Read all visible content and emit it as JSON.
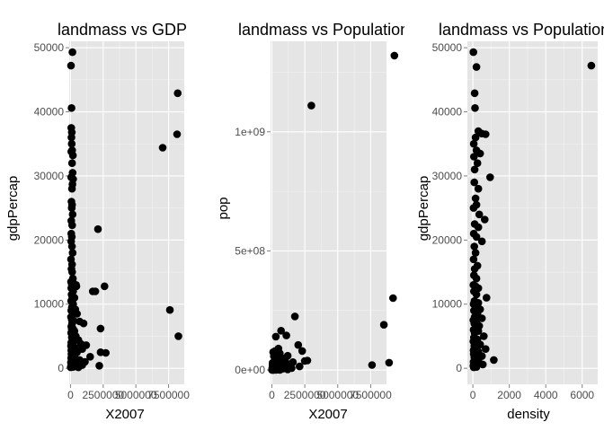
{
  "chart_data": [
    {
      "type": "scatter",
      "title": "landmass vs GDP",
      "xlabel": "X2007",
      "ylabel": "gdpPercap",
      "xlim": [
        -100000,
        8700000
      ],
      "ylim": [
        -2500,
        51000
      ],
      "x_ticks": [
        0,
        2500000,
        5000000,
        7500000
      ],
      "x_tick_labels": [
        "0",
        "2500000",
        "5000000",
        "7500000"
      ],
      "y_ticks": [
        0,
        10000,
        20000,
        30000,
        40000,
        50000
      ],
      "y_tick_labels": [
        "0",
        "10000",
        "20000",
        "30000",
        "40000",
        "50000"
      ],
      "grid": true,
      "points": [
        [
          150000,
          49300
        ],
        [
          40000,
          47200
        ],
        [
          80000,
          40600
        ],
        [
          60000,
          37500
        ],
        [
          100000,
          36800
        ],
        [
          70000,
          36000
        ],
        [
          90000,
          35000
        ],
        [
          130000,
          34000
        ],
        [
          60000,
          33800
        ],
        [
          180000,
          33200
        ],
        [
          120000,
          32000
        ],
        [
          160000,
          30500
        ],
        [
          50000,
          29800
        ],
        [
          200000,
          29500
        ],
        [
          150000,
          28700
        ],
        [
          110000,
          28000
        ],
        [
          70000,
          26000
        ],
        [
          120000,
          25500
        ],
        [
          90000,
          25000
        ],
        [
          160000,
          24000
        ],
        [
          60000,
          23000
        ],
        [
          130000,
          22300
        ],
        [
          2100000,
          21700
        ],
        [
          60000,
          21000
        ],
        [
          100000,
          20500
        ],
        [
          50000,
          19800
        ],
        [
          110000,
          19000
        ],
        [
          160000,
          18000
        ],
        [
          40000,
          17000
        ],
        [
          120000,
          16200
        ],
        [
          70000,
          15500
        ],
        [
          130000,
          15000
        ],
        [
          180000,
          14000
        ],
        [
          40000,
          13500
        ],
        [
          100000,
          13000
        ],
        [
          250000,
          13200
        ],
        [
          420000,
          13000
        ],
        [
          450000,
          12800
        ],
        [
          60000,
          12500
        ],
        [
          200000,
          12000
        ],
        [
          1700000,
          12000
        ],
        [
          1900000,
          12000
        ],
        [
          2600000,
          12800
        ],
        [
          80000,
          11500
        ],
        [
          130000,
          11200
        ],
        [
          300000,
          11000
        ],
        [
          50000,
          10500
        ],
        [
          200000,
          10000
        ],
        [
          100000,
          9500
        ],
        [
          370000,
          9200
        ],
        [
          60000,
          9000
        ],
        [
          150000,
          8700
        ],
        [
          500000,
          8500
        ],
        [
          40000,
          8000
        ],
        [
          90000,
          7600
        ],
        [
          250000,
          7400
        ],
        [
          700000,
          7300
        ],
        [
          120000,
          7000
        ],
        [
          1000000,
          7000
        ],
        [
          60000,
          6500
        ],
        [
          180000,
          6200
        ],
        [
          2300000,
          6200
        ],
        [
          90000,
          6000
        ],
        [
          300000,
          5800
        ],
        [
          50000,
          5500
        ],
        [
          150000,
          5200
        ],
        [
          400000,
          5000
        ],
        [
          100000,
          4800
        ],
        [
          250000,
          4500
        ],
        [
          600000,
          4400
        ],
        [
          60000,
          4000
        ],
        [
          200000,
          3900
        ],
        [
          800000,
          3800
        ],
        [
          1200000,
          3600
        ],
        [
          40000,
          3500
        ],
        [
          120000,
          3300
        ],
        [
          350000,
          3200
        ],
        [
          900000,
          3000
        ],
        [
          60000,
          2800
        ],
        [
          220000,
          2600
        ],
        [
          500000,
          2500
        ],
        [
          2300000,
          2500
        ],
        [
          2700000,
          2400
        ],
        [
          70000,
          2200
        ],
        [
          160000,
          2000
        ],
        [
          300000,
          1900
        ],
        [
          1500000,
          1800
        ],
        [
          50000,
          1600
        ],
        [
          130000,
          1500
        ],
        [
          400000,
          1400
        ],
        [
          700000,
          1300
        ],
        [
          80000,
          1100
        ],
        [
          200000,
          1000
        ],
        [
          1100000,
          1000
        ],
        [
          30000,
          900
        ],
        [
          150000,
          800
        ],
        [
          450000,
          700
        ],
        [
          60000,
          600
        ],
        [
          250000,
          500
        ],
        [
          900000,
          500
        ],
        [
          2200000,
          400
        ],
        [
          100000,
          300
        ],
        [
          350000,
          300
        ],
        [
          40000,
          250
        ],
        [
          180000,
          200
        ],
        [
          20000,
          150
        ],
        [
          600000,
          150
        ],
        [
          7050000,
          34400
        ],
        [
          8200000,
          42900
        ],
        [
          8150000,
          36500
        ],
        [
          7600000,
          9100
        ],
        [
          8250000,
          5000
        ]
      ]
    },
    {
      "type": "scatter",
      "title": "landmass vs Population",
      "xlabel": "X2007",
      "ylabel": "pop",
      "xlim": [
        -100000,
        8700000
      ],
      "ylim": [
        -60000000,
        1380000000
      ],
      "x_ticks": [
        0,
        2500000,
        5000000,
        7500000
      ],
      "x_tick_labels": [
        "0",
        "2500000",
        "5000000",
        "7500000"
      ],
      "y_ticks": [
        0,
        500000000,
        1000000000
      ],
      "y_tick_labels": [
        "0e+00",
        "5e+08",
        "1e+09"
      ],
      "grid": true,
      "points": [
        [
          9300000,
          1320000000
        ],
        [
          3000000,
          1110000000
        ],
        [
          9200000,
          302000000
        ],
        [
          8500000,
          190000000
        ],
        [
          1750000,
          225000000
        ],
        [
          8900000,
          31000000
        ],
        [
          7600000,
          21000000
        ],
        [
          700000,
          165000000
        ],
        [
          1100000,
          145000000
        ],
        [
          300000,
          140000000
        ],
        [
          2000000,
          105000000
        ],
        [
          500000,
          90000000
        ],
        [
          2300000,
          80000000
        ],
        [
          250000,
          80000000
        ],
        [
          100000,
          75000000
        ],
        [
          600000,
          70000000
        ],
        [
          400000,
          65000000
        ],
        [
          1200000,
          60000000
        ],
        [
          150000,
          58000000
        ],
        [
          800000,
          50000000
        ],
        [
          300000,
          48000000
        ],
        [
          1000000,
          45000000
        ],
        [
          2700000,
          40000000
        ],
        [
          2500000,
          38000000
        ],
        [
          500000,
          38000000
        ],
        [
          200000,
          35000000
        ],
        [
          1600000,
          33000000
        ],
        [
          60000,
          30000000
        ],
        [
          400000,
          28000000
        ],
        [
          700000,
          26000000
        ],
        [
          100000,
          25000000
        ],
        [
          1300000,
          24000000
        ],
        [
          300000,
          22000000
        ],
        [
          900000,
          20000000
        ],
        [
          50000,
          20000000
        ],
        [
          150000,
          18000000
        ],
        [
          500000,
          17000000
        ],
        [
          2100000,
          15000000
        ],
        [
          250000,
          15000000
        ],
        [
          800000,
          14000000
        ],
        [
          80000,
          12000000
        ],
        [
          400000,
          11000000
        ],
        [
          1100000,
          10000000
        ],
        [
          40000,
          10000000
        ],
        [
          200000,
          9000000
        ],
        [
          600000,
          8500000
        ],
        [
          1500000,
          8000000
        ],
        [
          100000,
          7500000
        ],
        [
          300000,
          7000000
        ],
        [
          60000,
          6500000
        ],
        [
          900000,
          6000000
        ],
        [
          150000,
          5500000
        ],
        [
          450000,
          5000000
        ],
        [
          30000,
          4500000
        ],
        [
          250000,
          4000000
        ],
        [
          700000,
          3500000
        ],
        [
          80000,
          3000000
        ],
        [
          350000,
          2500000
        ],
        [
          1200000,
          2200000
        ],
        [
          50000,
          2000000
        ],
        [
          200000,
          1800000
        ],
        [
          500000,
          1500000
        ],
        [
          20000,
          1200000
        ],
        [
          120000,
          1000000
        ],
        [
          300000,
          800000
        ],
        [
          40000,
          600000
        ],
        [
          150000,
          500000
        ],
        [
          600000,
          400000
        ],
        [
          10000,
          300000
        ],
        [
          100000,
          200000
        ]
      ]
    },
    {
      "type": "scatter",
      "title": "landmass vs Population",
      "xlabel": "density",
      "ylabel": "gdpPercap",
      "xlim": [
        -300,
        6850
      ],
      "ylim": [
        -2500,
        51000
      ],
      "x_ticks": [
        0,
        2000,
        4000,
        6000
      ],
      "x_tick_labels": [
        "0",
        "2000",
        "4000",
        "6000"
      ],
      "y_ticks": [
        0,
        10000,
        20000,
        30000,
        40000,
        50000
      ],
      "y_tick_labels": [
        "0",
        "10000",
        "20000",
        "30000",
        "40000",
        "50000"
      ],
      "grid": true,
      "points": [
        [
          30,
          49300
        ],
        [
          6500,
          47200
        ],
        [
          200,
          47000
        ],
        [
          100,
          42900
        ],
        [
          120,
          40600
        ],
        [
          300,
          37000
        ],
        [
          500,
          36600
        ],
        [
          700,
          36500
        ],
        [
          150,
          36000
        ],
        [
          50,
          35000
        ],
        [
          200,
          34000
        ],
        [
          400,
          33500
        ],
        [
          60,
          33000
        ],
        [
          250,
          32000
        ],
        [
          100,
          31000
        ],
        [
          950,
          29800
        ],
        [
          80,
          29000
        ],
        [
          300,
          28000
        ],
        [
          150,
          26500
        ],
        [
          200,
          25500
        ],
        [
          40,
          25000
        ],
        [
          350,
          24000
        ],
        [
          650,
          23200
        ],
        [
          100,
          22500
        ],
        [
          300,
          22000
        ],
        [
          50,
          21000
        ],
        [
          200,
          20500
        ],
        [
          500,
          19800
        ],
        [
          80,
          19000
        ],
        [
          150,
          18000
        ],
        [
          40,
          17000
        ],
        [
          250,
          16000
        ],
        [
          100,
          15500
        ],
        [
          60,
          14500
        ],
        [
          200,
          14000
        ],
        [
          30,
          13000
        ],
        [
          150,
          12800
        ],
        [
          300,
          12500
        ],
        [
          60,
          12000
        ],
        [
          200,
          11500
        ],
        [
          750,
          11000
        ],
        [
          90,
          10500
        ],
        [
          300,
          10200
        ],
        [
          40,
          10000
        ],
        [
          150,
          9500
        ],
        [
          400,
          9200
        ],
        [
          60,
          9000
        ],
        [
          250,
          8500
        ],
        [
          100,
          8000
        ],
        [
          500,
          7800
        ],
        [
          30,
          7500
        ],
        [
          200,
          7200
        ],
        [
          80,
          7000
        ],
        [
          350,
          6600
        ],
        [
          150,
          6200
        ],
        [
          40,
          6000
        ],
        [
          300,
          5800
        ],
        [
          100,
          5500
        ],
        [
          600,
          5000
        ],
        [
          60,
          4800
        ],
        [
          250,
          4500
        ],
        [
          30,
          4200
        ],
        [
          150,
          4000
        ],
        [
          400,
          3700
        ],
        [
          80,
          3500
        ],
        [
          200,
          3200
        ],
        [
          700,
          3000
        ],
        [
          40,
          2800
        ],
        [
          300,
          2600
        ],
        [
          100,
          2400
        ],
        [
          50,
          2200
        ],
        [
          200,
          2000
        ],
        [
          500,
          1900
        ],
        [
          80,
          1700
        ],
        [
          150,
          1500
        ],
        [
          1150,
          1300
        ],
        [
          300,
          1200
        ],
        [
          40,
          1000
        ],
        [
          100,
          900
        ],
        [
          250,
          800
        ],
        [
          60,
          700
        ],
        [
          550,
          600
        ],
        [
          150,
          500
        ],
        [
          30,
          400
        ],
        [
          100,
          300
        ],
        [
          200,
          200
        ],
        [
          50,
          150
        ]
      ]
    }
  ]
}
